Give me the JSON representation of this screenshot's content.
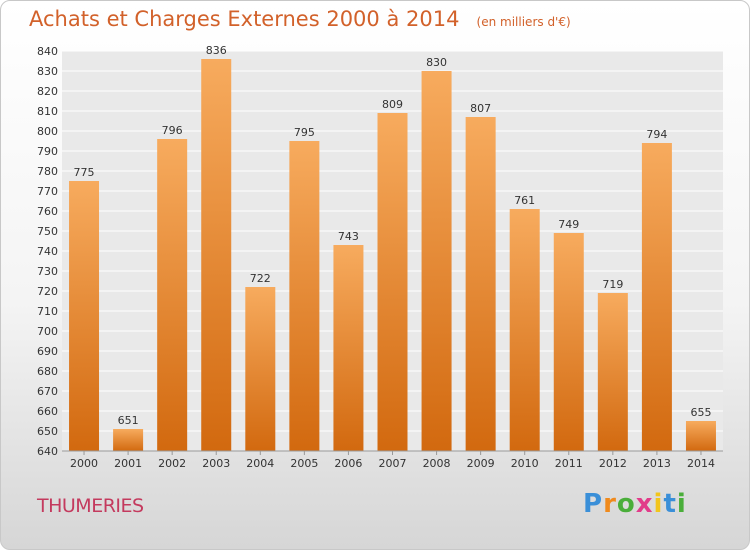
{
  "header": {
    "title": "Achats et Charges Externes 2000 à 2014",
    "subtitle": "(en milliers d'€)"
  },
  "footer": {
    "commune": "THUMERIES",
    "logo": "Proxiti"
  },
  "colors": {
    "title": "#d2612a",
    "commune": "#c43a5e",
    "bar_light": "#f6a85a",
    "bar_dark": "#d06a15"
  },
  "chart_data": {
    "type": "bar",
    "title": "Achats et Charges Externes 2000 à 2014",
    "subtitle": "(en milliers d'€)",
    "xlabel": "",
    "ylabel": "",
    "categories": [
      "2000",
      "2001",
      "2002",
      "2003",
      "2004",
      "2005",
      "2006",
      "2007",
      "2008",
      "2009",
      "2010",
      "2011",
      "2012",
      "2013",
      "2014"
    ],
    "values": [
      775,
      651,
      796,
      836,
      722,
      795,
      743,
      809,
      830,
      807,
      761,
      749,
      719,
      794,
      655
    ],
    "ylim": [
      640,
      840
    ],
    "yticks": [
      640,
      650,
      660,
      670,
      680,
      690,
      700,
      710,
      720,
      730,
      740,
      750,
      760,
      770,
      780,
      790,
      800,
      810,
      820,
      830,
      840
    ],
    "grid": true,
    "legend": "none"
  }
}
